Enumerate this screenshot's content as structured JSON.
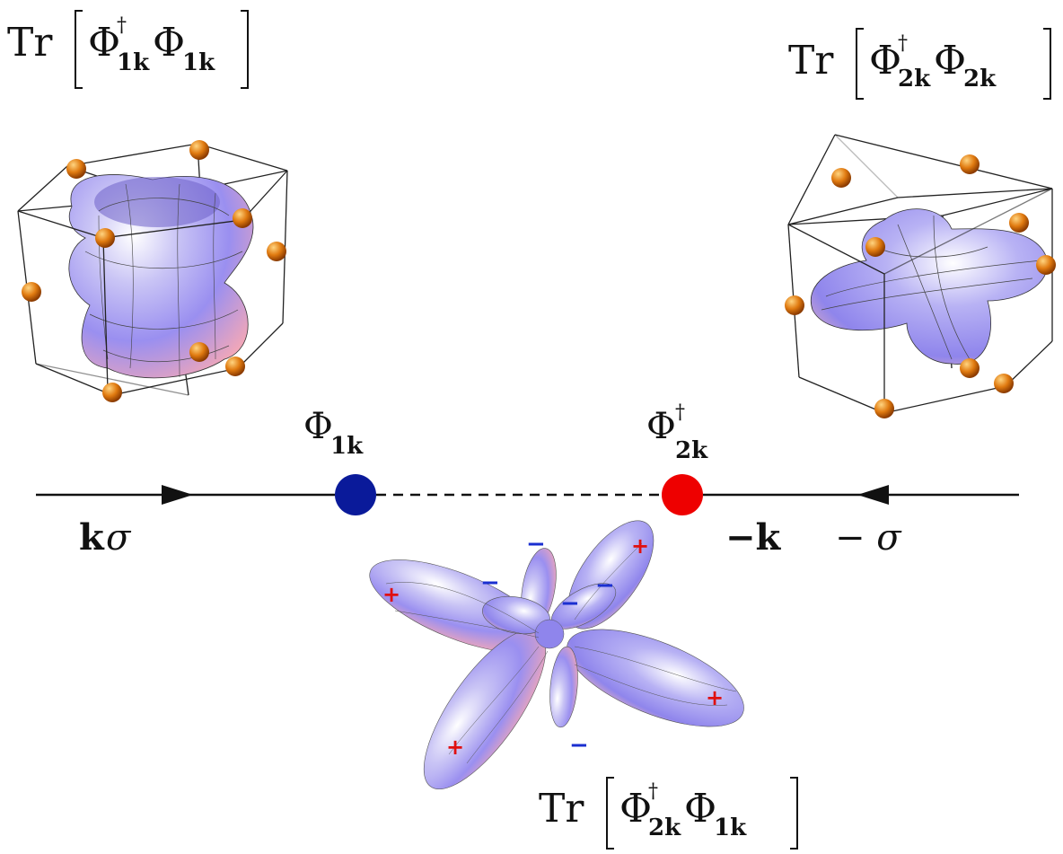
{
  "diagram": {
    "top_left_label": {
      "tr": "Tr",
      "phi1": "Φ",
      "phi1_sup": "†",
      "phi1_sub": "1k",
      "phi2": "Φ",
      "phi2_sub": "1k"
    },
    "top_right_label": {
      "tr": "Tr",
      "phi1": "Φ",
      "phi1_sup": "†",
      "phi1_sub": "2k",
      "phi2": "Φ",
      "phi2_sub": "2k"
    },
    "bottom_label": {
      "tr": "Tr",
      "phi1": "Φ",
      "phi1_sup": "†",
      "phi1_sub": "2k",
      "phi2": "Φ",
      "phi2_sub": "1k"
    },
    "left_vertex": {
      "symbol": "Φ",
      "sub": "1k",
      "color": "#0a1a9a"
    },
    "right_vertex": {
      "symbol": "Φ",
      "sup": "†",
      "sub": "2k",
      "color": "#ee0000"
    },
    "left_line_label": {
      "k": "k",
      "sigma": "σ"
    },
    "right_line_label": {
      "k": "−k",
      "sigma": "− σ"
    },
    "orbital_signs": [
      "+",
      "+",
      "+",
      "+",
      "−",
      "−",
      "−",
      "−",
      "−"
    ]
  }
}
